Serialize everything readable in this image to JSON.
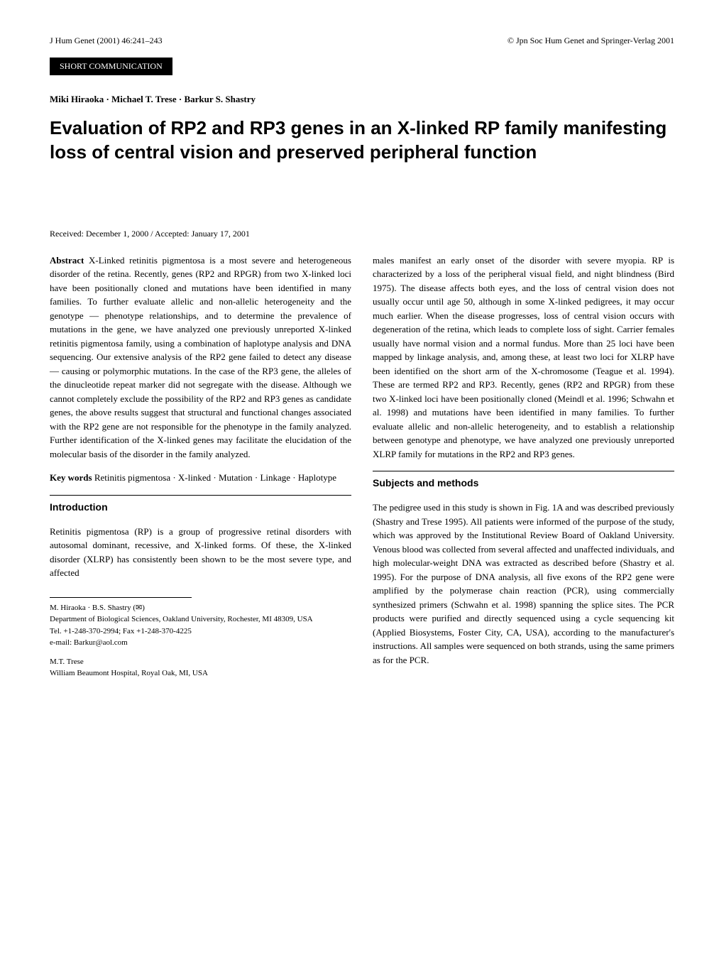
{
  "journal_ref": "J Hum Genet (2001) 46:241–243",
  "copyright": "© Jpn Soc Hum Genet and Springer-Verlag 2001",
  "article_type": "SHORT COMMUNICATION",
  "authors": "Miki Hiraoka · Michael T. Trese · Barkur S. Shastry",
  "title": "Evaluation of RP2 and RP3 genes in an X-linked RP family manifesting loss of central vision and preserved peripheral function",
  "received": "Received: December 1, 2000 / Accepted: January 17, 2001",
  "abstract_label": "Abstract",
  "abstract_text": " X-Linked retinitis pigmentosa is a most severe and heterogeneous disorder of the retina. Recently, genes (RP2 and RPGR) from two X-linked loci have been positionally cloned and mutations have been identified in many families. To further evaluate allelic and non-allelic heterogeneity and the genotype — phenotype relationships, and to determine the prevalence of mutations in the gene, we have analyzed one previously unreported X-linked retinitis pigmentosa family, using a combination of haplotype analysis and DNA sequencing. Our extensive analysis of the RP2 gene failed to detect any disease — causing or polymorphic mutations. In the case of the RP3 gene, the alleles of the dinucleotide repeat marker did not segregate with the disease. Although we cannot completely exclude the possibility of the RP2 and RP3 genes as candidate genes, the above results suggest that structural and functional changes associated with the RP2 gene are not responsible for the phenotype in the family analyzed. Further identification of the X-linked genes may facilitate the elucidation of the molecular basis of the disorder in the family analyzed.",
  "keywords_label": "Key words",
  "keywords_text": " Retinitis pigmentosa · X-linked · Mutation · Linkage · Haplotype",
  "section_intro": "Introduction",
  "intro_text": "Retinitis pigmentosa (RP) is a group of progressive retinal disorders with autosomal dominant, recessive, and X-linked forms. Of these, the X-linked disorder (XLRP) has consistently been shown to be the most severe type, and affected",
  "affil1_line1": "M. Hiraoka · B.S. Shastry (✉)",
  "affil1_line2": "Department of Biological Sciences, Oakland University, Rochester, MI 48309, USA",
  "affil1_line3": "Tel. +1-248-370-2994; Fax +1-248-370-4225",
  "affil1_line4": "e-mail: Barkur@aol.com",
  "affil2_line1": "M.T. Trese",
  "affil2_line2": "William Beaumont Hospital, Royal Oak, MI, USA",
  "col2_para1": "males manifest an early onset of the disorder with severe myopia. RP is characterized by a loss of the peripheral visual field, and night blindness (Bird 1975). The disease affects both eyes, and the loss of central vision does not usually occur until age 50, although in some X-linked pedigrees, it may occur much earlier. When the disease progresses, loss of central vision occurs with degeneration of the retina, which leads to complete loss of sight. Carrier females usually have normal vision and a normal fundus. More than 25 loci have been mapped by linkage analysis, and, among these, at least two loci for XLRP have been identified on the short arm of the X-chromosome (Teague et al. 1994). These are termed RP2 and RP3. Recently, genes (RP2 and RPGR) from these two X-linked loci have been positionally cloned (Meindl et al. 1996; Schwahn et al. 1998) and mutations have been identified in many families. To further evaluate allelic and non-allelic heterogeneity, and to establish a relationship between genotype and phenotype, we have analyzed one previously unreported XLRP family for mutations in the RP2 and RP3 genes.",
  "section_subjects": "Subjects and methods",
  "subjects_text": "The pedigree used in this study is shown in Fig. 1A and was described previously (Shastry and Trese 1995). All patients were informed of the purpose of the study, which was approved by the Institutional Review Board of Oakland University. Venous blood was collected from several affected and unaffected individuals, and high molecular-weight DNA was extracted as described before (Shastry et al. 1995). For the purpose of DNA analysis, all five exons of the RP2 gene were amplified by the polymerase chain reaction (PCR), using commercially synthesized primers (Schwahn et al. 1998) spanning the splice sites. The PCR products were purified and directly sequenced using a cycle sequencing kit (Applied Biosystems, Foster City, CA, USA), according to the manufacturer's instructions. All samples were sequenced on both strands, using the same primers as for the PCR."
}
